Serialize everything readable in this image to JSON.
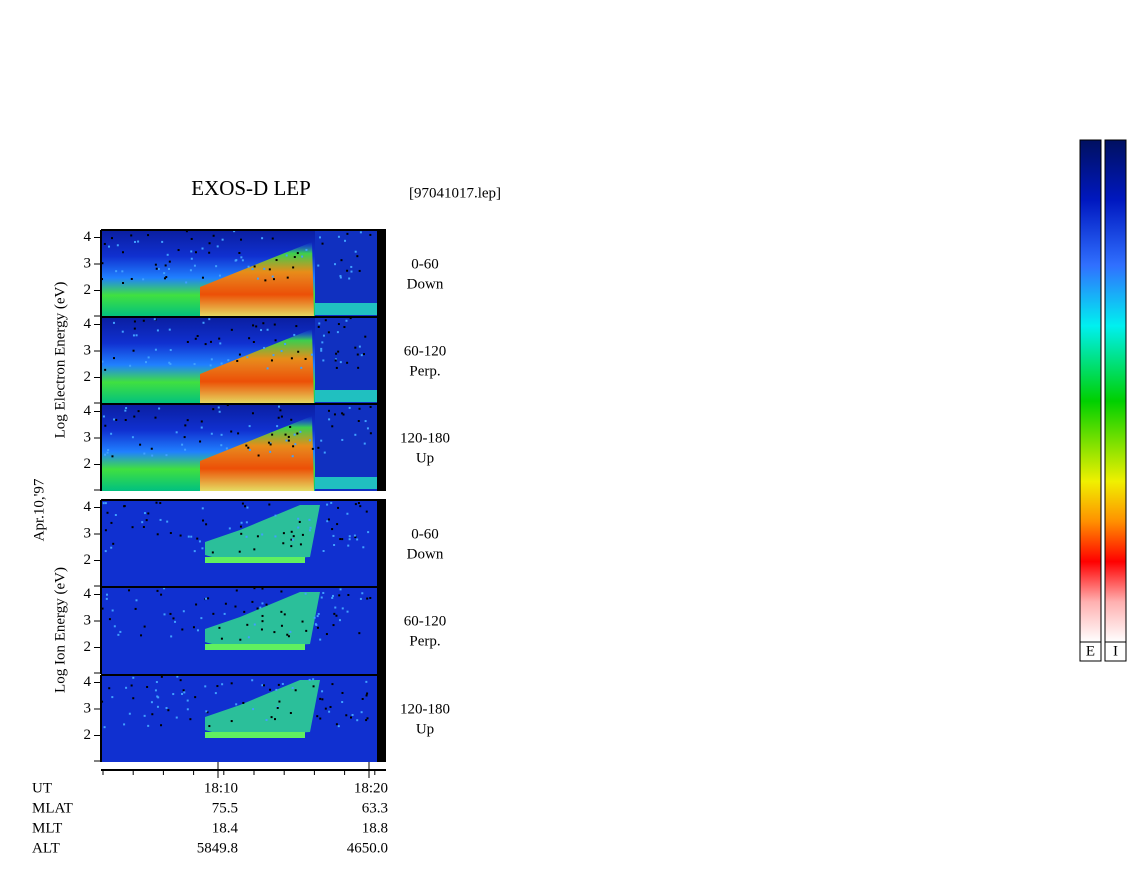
{
  "header": {
    "title": "EXOS-D LEP",
    "file": "[97041017.lep]"
  },
  "date": "Apr.10,'97",
  "groups": [
    {
      "label": "Log Electron Energy (eV)",
      "kind": "electron",
      "panels": [
        {
          "range": "0-60",
          "direction": "Down",
          "yticks": [
            "4",
            "3",
            "2"
          ]
        },
        {
          "range": "60-120",
          "direction": "Perp.",
          "yticks": [
            "4",
            "3",
            "2"
          ]
        },
        {
          "range": "120-180",
          "direction": "Up",
          "yticks": [
            "4",
            "3",
            "2"
          ]
        }
      ]
    },
    {
      "label": "Log Ion Energy (eV)",
      "kind": "ion",
      "panels": [
        {
          "range": "0-60",
          "direction": "Down",
          "yticks": [
            "4",
            "3",
            "2"
          ]
        },
        {
          "range": "60-120",
          "direction": "Perp.",
          "yticks": [
            "4",
            "3",
            "2"
          ]
        },
        {
          "range": "120-180",
          "direction": "Up",
          "yticks": [
            "4",
            "3",
            "2"
          ]
        }
      ]
    }
  ],
  "ephemeris": [
    {
      "label": "UT",
      "values": [
        "18:10",
        "18:20"
      ]
    },
    {
      "label": "MLAT",
      "values": [
        "75.5",
        "63.3"
      ]
    },
    {
      "label": "MLT",
      "values": [
        "18.4",
        "18.8"
      ]
    },
    {
      "label": "ALT",
      "values": [
        "5849.8",
        "4650.0"
      ]
    }
  ],
  "colorbars": [
    "E",
    "I"
  ]
}
